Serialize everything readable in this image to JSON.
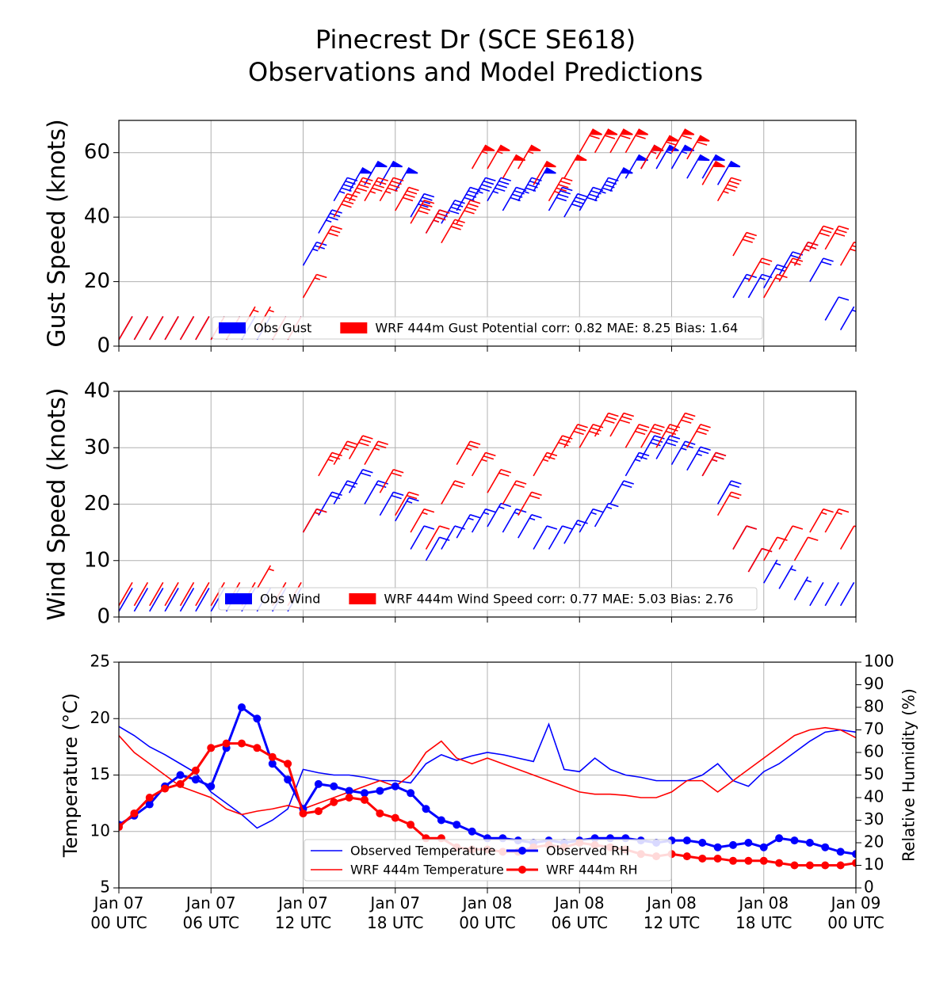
{
  "chart_data": [
    {
      "type": "barb",
      "title": [
        "Pinecrest Dr (SCE SE618)",
        "Observations and Model Predictions"
      ],
      "y_label": "Gust Speed (knots)",
      "x": [
        0,
        1,
        2,
        3,
        4,
        5,
        6,
        7,
        8,
        9,
        10,
        11,
        12,
        13,
        14,
        15,
        16,
        17,
        18,
        19,
        20,
        21,
        22,
        23,
        24,
        25,
        26,
        27,
        28,
        29,
        30,
        31,
        32,
        33,
        34,
        35,
        36,
        37,
        38,
        39,
        40,
        41,
        42,
        43,
        44,
        45,
        46,
        47,
        48
      ],
      "xlim": [
        0,
        48
      ],
      "xticks": [
        0,
        6,
        12,
        18,
        24,
        30,
        36,
        42,
        48
      ],
      "ylim": [
        0,
        70
      ],
      "yticks": [
        0,
        20,
        40,
        60
      ],
      "grid": true,
      "legend": "lower center",
      "series": [
        {
          "name": "Obs Gust",
          "color": "#0000ff",
          "values": [
            2,
            2,
            2,
            2,
            2,
            2,
            2,
            2,
            2,
            2,
            2,
            2,
            25,
            35,
            45,
            48,
            50,
            50,
            48,
            40,
            35,
            38,
            42,
            45,
            45,
            42,
            45,
            48,
            42,
            40,
            42,
            45,
            48,
            52,
            55,
            55,
            55,
            52,
            52,
            50,
            15,
            15,
            18,
            22,
            25,
            20,
            8,
            5,
            2
          ]
        },
        {
          "name": "WRF 444m Gust Potential corr: 0.82 MAE: 8.25 Bias: 1.64",
          "color": "#ff0000",
          "values": [
            2,
            2,
            2,
            2,
            2,
            2,
            2,
            2,
            5,
            5,
            2,
            2,
            15,
            30,
            40,
            45,
            45,
            45,
            42,
            38,
            35,
            32,
            38,
            55,
            55,
            52,
            55,
            50,
            45,
            52,
            60,
            60,
            60,
            60,
            55,
            58,
            60,
            58,
            50,
            45,
            28,
            20,
            15,
            20,
            25,
            30,
            30,
            25,
            20
          ]
        }
      ]
    },
    {
      "type": "barb",
      "y_label": "Wind Speed (knots)",
      "x": [
        0,
        1,
        2,
        3,
        4,
        5,
        6,
        7,
        8,
        9,
        10,
        11,
        12,
        13,
        14,
        15,
        16,
        17,
        18,
        19,
        20,
        21,
        22,
        23,
        24,
        25,
        26,
        27,
        28,
        29,
        30,
        31,
        32,
        33,
        34,
        35,
        36,
        37,
        38,
        39,
        40,
        41,
        42,
        43,
        44,
        45,
        46,
        47,
        48
      ],
      "xlim": [
        0,
        48
      ],
      "xticks": [
        0,
        6,
        12,
        18,
        24,
        30,
        36,
        42,
        48
      ],
      "ylim": [
        0,
        40
      ],
      "yticks": [
        0,
        10,
        20,
        30,
        40
      ],
      "grid": true,
      "legend": "lower center",
      "series": [
        {
          "name": "Obs Wind",
          "color": "#0000ff",
          "values": [
            1,
            1,
            1,
            1,
            1,
            1,
            1,
            1,
            1,
            1,
            1,
            1,
            15,
            18,
            20,
            22,
            20,
            18,
            17,
            12,
            10,
            12,
            14,
            15,
            16,
            15,
            14,
            12,
            12,
            13,
            15,
            16,
            20,
            25,
            28,
            28,
            27,
            26,
            25,
            20,
            12,
            8,
            6,
            5,
            3,
            2,
            2,
            2,
            2
          ]
        },
        {
          "name": "WRF 444m Wind Speed corr: 0.77 MAE: 5.03 Bias: 2.76",
          "color": "#ff0000",
          "values": [
            2,
            2,
            2,
            2,
            2,
            2,
            2,
            2,
            2,
            5,
            2,
            2,
            15,
            25,
            27,
            28,
            27,
            22,
            18,
            15,
            12,
            20,
            27,
            25,
            22,
            20,
            18,
            25,
            28,
            30,
            30,
            32,
            32,
            30,
            30,
            30,
            32,
            30,
            25,
            18,
            12,
            8,
            10,
            12,
            10,
            15,
            15,
            12,
            8
          ]
        }
      ]
    },
    {
      "type": "line",
      "y_label": "Temperature (°C)",
      "y2_label": "Relative Humidity (%)",
      "x": [
        0,
        1,
        2,
        3,
        4,
        5,
        6,
        7,
        8,
        9,
        10,
        11,
        12,
        13,
        14,
        15,
        16,
        17,
        18,
        19,
        20,
        21,
        22,
        23,
        24,
        25,
        26,
        27,
        28,
        29,
        30,
        31,
        32,
        33,
        34,
        35,
        36,
        37,
        38,
        39,
        40,
        41,
        42,
        43,
        44,
        45,
        46,
        47,
        48
      ],
      "xlim": [
        0,
        48
      ],
      "xticks": [
        {
          "value": 0,
          "label": "Jan 07\n00 UTC"
        },
        {
          "value": 6,
          "label": "Jan 07\n06 UTC"
        },
        {
          "value": 12,
          "label": "Jan 07\n12 UTC"
        },
        {
          "value": 18,
          "label": "Jan 07\n18 UTC"
        },
        {
          "value": 24,
          "label": "Jan 08\n00 UTC"
        },
        {
          "value": 30,
          "label": "Jan 08\n06 UTC"
        },
        {
          "value": 36,
          "label": "Jan 08\n12 UTC"
        },
        {
          "value": 42,
          "label": "Jan 08\n18 UTC"
        },
        {
          "value": 48,
          "label": "Jan 09\n00 UTC"
        }
      ],
      "ylim": [
        5,
        25
      ],
      "yticks": [
        5,
        10,
        15,
        20,
        25
      ],
      "y2lim": [
        0,
        100
      ],
      "y2ticks": [
        0,
        10,
        20,
        30,
        40,
        50,
        60,
        70,
        80,
        90,
        100
      ],
      "grid": true,
      "legend": "lower center",
      "series": [
        {
          "name": "Observed Temperature",
          "color": "#0000ff",
          "marker": false,
          "values": [
            19.3,
            18.5,
            17.5,
            16.8,
            16,
            15.2,
            13.5,
            12.5,
            11.5,
            10.3,
            11,
            12,
            15.5,
            15.2,
            15,
            15,
            14.8,
            14.5,
            14.5,
            14.3,
            16,
            16.8,
            16.3,
            16.7,
            17,
            16.8,
            16.5,
            16.2,
            19.5,
            15.5,
            15.3,
            16.5,
            15.5,
            15,
            14.8,
            14.5,
            14.5,
            14.5,
            15,
            16,
            14.5,
            14,
            15.3,
            16,
            17,
            18,
            18.8,
            19,
            18.8
          ]
        },
        {
          "name": "WRF 444m Temperature",
          "color": "#ff0000",
          "marker": false,
          "values": [
            18.5,
            17,
            16,
            15,
            14,
            13.5,
            13,
            12,
            11.5,
            11.8,
            12,
            12.3,
            12,
            12.5,
            13,
            13.5,
            14,
            14.5,
            14,
            15,
            17,
            18,
            16.5,
            16,
            16.5,
            16,
            15.5,
            15,
            14.5,
            14,
            13.5,
            13.3,
            13.3,
            13.2,
            13,
            13,
            13.5,
            14.5,
            14.5,
            13.5,
            14.5,
            15.5,
            16.5,
            17.5,
            18.5,
            19,
            19.2,
            19,
            18.3
          ]
        },
        {
          "name": "Observed RH",
          "color": "#0000ff",
          "marker": true,
          "axis": "y2",
          "values": [
            28,
            32,
            37,
            45,
            50,
            48,
            45,
            62,
            80,
            75,
            55,
            48,
            35,
            46,
            45,
            43,
            42,
            43,
            45,
            42,
            35,
            30,
            28,
            25,
            22,
            22,
            21,
            20,
            21,
            20,
            21,
            22,
            22,
            22,
            21,
            20,
            21,
            21,
            20,
            18,
            19,
            20,
            18,
            22,
            21,
            20,
            18,
            16,
            15
          ]
        },
        {
          "name": "WRF 444m RH",
          "color": "#ff0000",
          "marker": true,
          "axis": "y2",
          "values": [
            27,
            33,
            40,
            44,
            46,
            52,
            62,
            64,
            64,
            62,
            58,
            55,
            33,
            34,
            38,
            40,
            39,
            33,
            31,
            28,
            22,
            22,
            18,
            17,
            17,
            16,
            16,
            18,
            19,
            18,
            20,
            19,
            18,
            17,
            15,
            14,
            15,
            14,
            13,
            13,
            12,
            12,
            12,
            11,
            10,
            10,
            10,
            10,
            11
          ]
        }
      ]
    }
  ]
}
